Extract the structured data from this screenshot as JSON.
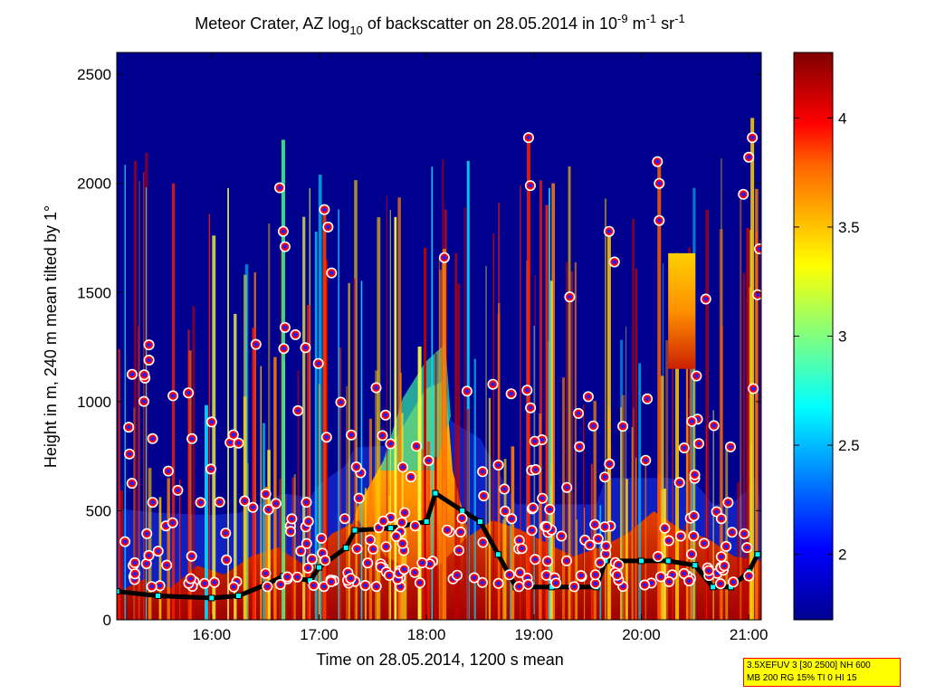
{
  "title": {
    "main": "Meteor Crater, AZ log",
    "sub10": "10",
    "mid": " of backscatter on 28.05.2014 in 10",
    "supm9": "-9",
    "m": " m",
    "supm1a": "-1",
    "sr": " sr",
    "supm1b": "-1"
  },
  "axes": {
    "xlabel": "Time on 28.05.2014, 1200 s mean",
    "ylabel": "Height in m, 240 m mean tilted by 1°"
  },
  "infobox": {
    "line1": "3.5XEFUV 3 [30 2500] NH 600",
    "line2": "MB 200 RG 15% TI 0 HI 15"
  },
  "chart_data": {
    "type": "heatmap",
    "title": "Meteor Crater, AZ log10 of backscatter on 28.05.2014 in 10^-9 m^-1 sr^-1",
    "xlabel": "Time on 28.05.2014, 1200 s mean",
    "ylabel": "Height in m, 240 m mean tilted by 1°",
    "xlim": [
      "15:07",
      "21:07"
    ],
    "ylim": [
      0,
      2600
    ],
    "x_ticks": [
      "16:00",
      "17:00",
      "18:00",
      "19:00",
      "20:00",
      "21:00"
    ],
    "y_ticks": [
      0,
      500,
      1000,
      1500,
      2000,
      2500
    ],
    "colorbar": {
      "range": [
        1.7,
        4.3
      ],
      "ticks": [
        2,
        2.5,
        3,
        3.5,
        4
      ],
      "colormap": [
        "#00008f",
        "#0000ff",
        "#00ffff",
        "#ffff00",
        "#ff8000",
        "#ff0000",
        "#800000"
      ]
    },
    "mixing_layer_height": {
      "name": "",
      "marker_color": "#00ffff",
      "points": [
        [
          "15:07",
          130
        ],
        [
          "15:30",
          110
        ],
        [
          "16:00",
          100
        ],
        [
          "16:15",
          110
        ],
        [
          "16:30",
          160
        ],
        [
          "16:40",
          200
        ],
        [
          "16:55",
          180
        ],
        [
          "17:00",
          240
        ],
        [
          "17:15",
          330
        ],
        [
          "17:20",
          410
        ],
        [
          "17:40",
          420
        ],
        [
          "18:00",
          450
        ],
        [
          "18:05",
          580
        ],
        [
          "18:20",
          500
        ],
        [
          "18:30",
          450
        ],
        [
          "18:40",
          300
        ],
        [
          "18:50",
          150
        ],
        [
          "19:10",
          150
        ],
        [
          "19:35",
          150
        ],
        [
          "19:40",
          270
        ],
        [
          "20:00",
          270
        ],
        [
          "20:15",
          270
        ],
        [
          "20:30",
          250
        ],
        [
          "20:40",
          150
        ],
        [
          "20:50",
          150
        ],
        [
          "21:00",
          220
        ],
        [
          "21:05",
          300
        ]
      ]
    },
    "cloud_base_points": {
      "name": "",
      "marker_color": "#ff0000",
      "points": [
        [
          "15:25",
          1260
        ],
        [
          "15:25",
          1190
        ],
        [
          "15:27",
          830
        ],
        [
          "15:47",
          1040
        ],
        [
          "15:49",
          830
        ],
        [
          "16:15",
          810
        ],
        [
          "16:38",
          1980
        ],
        [
          "16:40",
          1780
        ],
        [
          "16:41",
          1710
        ],
        [
          "16:41",
          1340
        ],
        [
          "17:03",
          1880
        ],
        [
          "17:05",
          1800
        ],
        [
          "17:07",
          1590
        ],
        [
          "18:10",
          1660
        ],
        [
          "18:57",
          2210
        ],
        [
          "18:58",
          1990
        ],
        [
          "19:20",
          1480
        ],
        [
          "19:42",
          1780
        ],
        [
          "19:45",
          1640
        ],
        [
          "20:09",
          2100
        ],
        [
          "20:10",
          2000
        ],
        [
          "20:10",
          1830
        ],
        [
          "20:36",
          1470
        ],
        [
          "20:57",
          1950
        ],
        [
          "21:02",
          2210
        ],
        [
          "21:00",
          2120
        ],
        [
          "21:06",
          1700
        ],
        [
          "21:05",
          1490
        ]
      ]
    }
  }
}
